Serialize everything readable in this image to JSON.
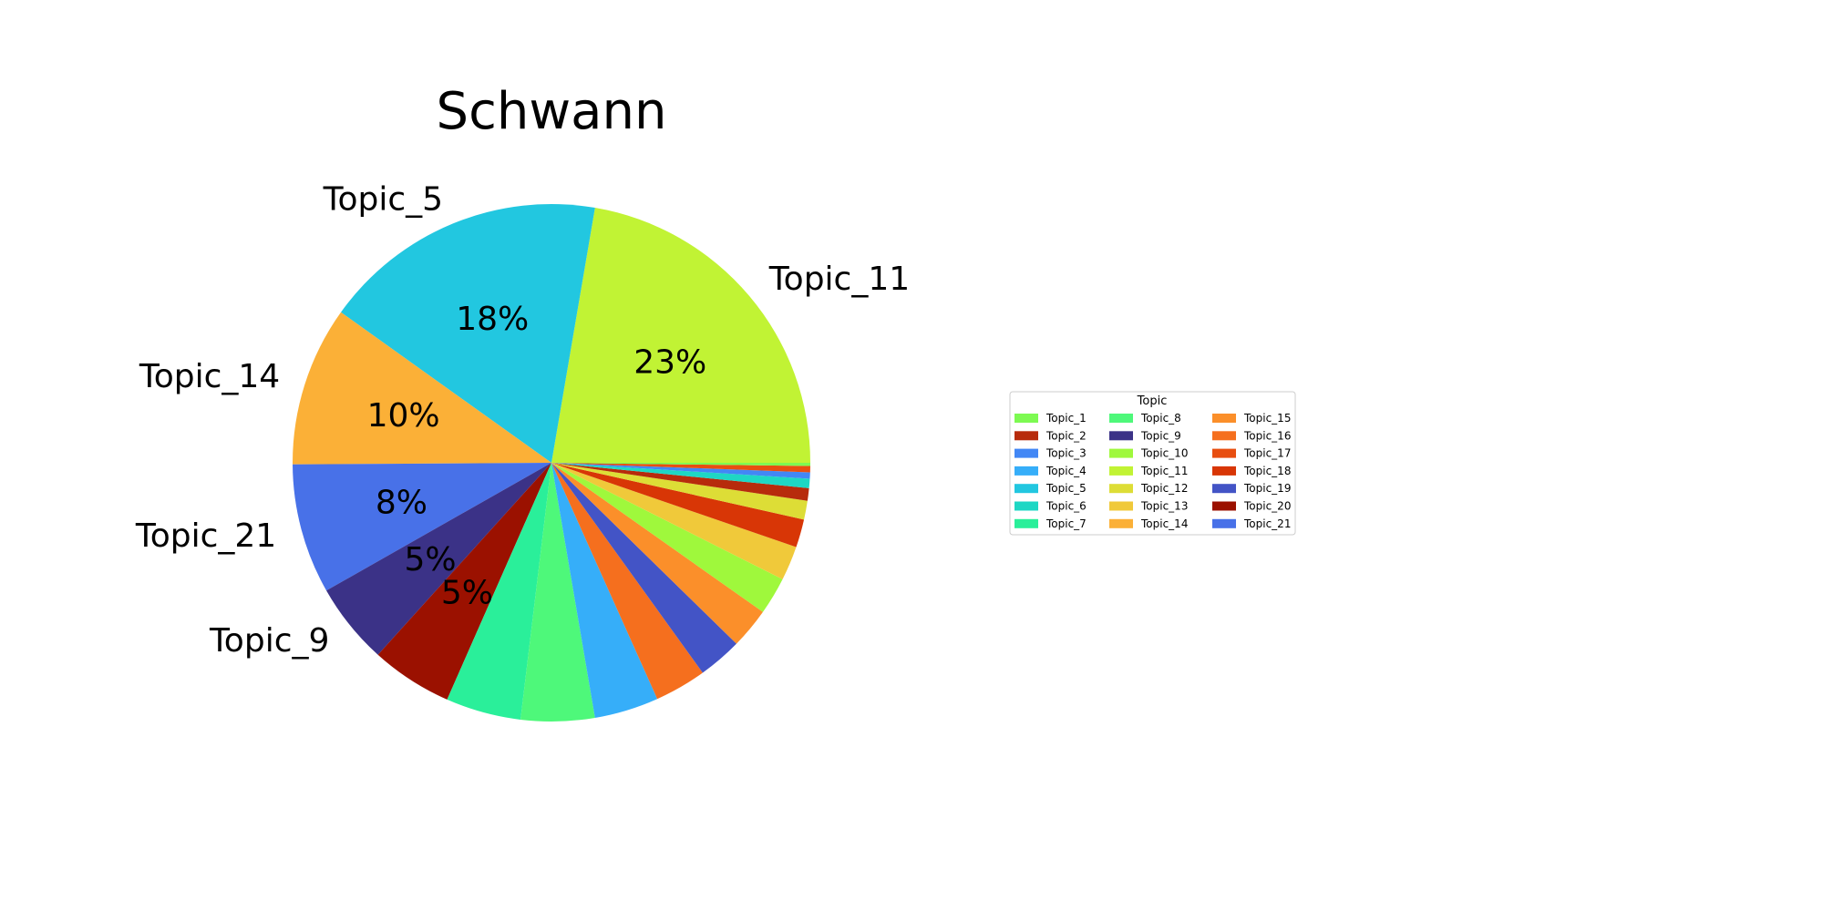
{
  "chart_data": {
    "type": "pie",
    "title": "Schwann",
    "legend_title": "Topic",
    "legend_position": "right",
    "categories": [
      "Topic_1",
      "Topic_2",
      "Topic_3",
      "Topic_4",
      "Topic_5",
      "Topic_6",
      "Topic_7",
      "Topic_8",
      "Topic_9",
      "Topic_10",
      "Topic_11",
      "Topic_12",
      "Topic_13",
      "Topic_14",
      "Topic_15",
      "Topic_16",
      "Topic_17",
      "Topic_18",
      "Topic_19",
      "Topic_20",
      "Topic_21"
    ],
    "colors": [
      "#7dfa52",
      "#b72b0c",
      "#4287f5",
      "#36aef9",
      "#22c7e0",
      "#1ed7c4",
      "#2aef9a",
      "#4ef87a",
      "#3b3287",
      "#9ff83c",
      "#c1f334",
      "#dddd36",
      "#f0c93a",
      "#fbb037",
      "#fb8f2a",
      "#f56f1e",
      "#e84e10",
      "#d83606",
      "#4354c6",
      "#9b1100",
      "#4871e8"
    ],
    "slices": [
      {
        "topic": "Topic_11",
        "value": 22.8,
        "pct_label": "23%",
        "name_label": "Topic_11"
      },
      {
        "topic": "Topic_5",
        "value": 18.2,
        "pct_label": "18%",
        "name_label": "Topic_5"
      },
      {
        "topic": "Topic_14",
        "value": 10.2,
        "pct_label": "10%",
        "name_label": "Topic_14"
      },
      {
        "topic": "Topic_21",
        "value": 8.3,
        "pct_label": "8%",
        "name_label": "Topic_21"
      },
      {
        "topic": "Topic_9",
        "value": 5.2,
        "pct_label": "5%",
        "name_label": "Topic_9"
      },
      {
        "topic": "Topic_20",
        "value": 5.2,
        "pct_label": "5%",
        "name_label": ""
      },
      {
        "topic": "Topic_7",
        "value": 4.8,
        "pct_label": "",
        "name_label": ""
      },
      {
        "topic": "Topic_8",
        "value": 4.7,
        "pct_label": "",
        "name_label": ""
      },
      {
        "topic": "Topic_4",
        "value": 4.1,
        "pct_label": "",
        "name_label": ""
      },
      {
        "topic": "Topic_16",
        "value": 3.3,
        "pct_label": "",
        "name_label": ""
      },
      {
        "topic": "Topic_19",
        "value": 2.8,
        "pct_label": "",
        "name_label": ""
      },
      {
        "topic": "Topic_15",
        "value": 2.6,
        "pct_label": "",
        "name_label": ""
      },
      {
        "topic": "Topic_10",
        "value": 2.4,
        "pct_label": "",
        "name_label": ""
      },
      {
        "topic": "Topic_13",
        "value": 2.2,
        "pct_label": "",
        "name_label": ""
      },
      {
        "topic": "Topic_18",
        "value": 1.8,
        "pct_label": "",
        "name_label": ""
      },
      {
        "topic": "Topic_12",
        "value": 1.2,
        "pct_label": "",
        "name_label": ""
      },
      {
        "topic": "Topic_2",
        "value": 0.8,
        "pct_label": "",
        "name_label": ""
      },
      {
        "topic": "Topic_6",
        "value": 0.6,
        "pct_label": "",
        "name_label": ""
      },
      {
        "topic": "Topic_3",
        "value": 0.4,
        "pct_label": "",
        "name_label": ""
      },
      {
        "topic": "Topic_17",
        "value": 0.4,
        "pct_label": "",
        "name_label": ""
      },
      {
        "topic": "Topic_1",
        "value": 0.2,
        "pct_label": "",
        "name_label": ""
      }
    ]
  }
}
